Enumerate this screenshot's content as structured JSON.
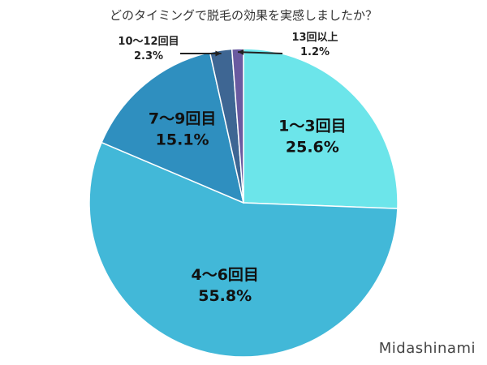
{
  "chart_data": {
    "type": "pie",
    "title": "どのタイミングで脱毛の効果を実感しましたか？",
    "slices": [
      {
        "label": "1〜3回目",
        "value": 25.6,
        "value_text": "25.6%",
        "color": "#6ce5ea"
      },
      {
        "label": "4〜6回目",
        "value": 55.8,
        "value_text": "55.8%",
        "color": "#42b8d8"
      },
      {
        "label": "7〜9回目",
        "value": 15.1,
        "value_text": "15.1%",
        "color": "#2f8fbf"
      },
      {
        "label": "10〜12回目",
        "value": 2.3,
        "value_text": "2.3%",
        "color": "#3e6693"
      },
      {
        "label": "13回以上",
        "value": 1.2,
        "value_text": "1.2%",
        "color": "#6a5aa0"
      }
    ],
    "legend": "none"
  },
  "watermark": "Midashinami"
}
